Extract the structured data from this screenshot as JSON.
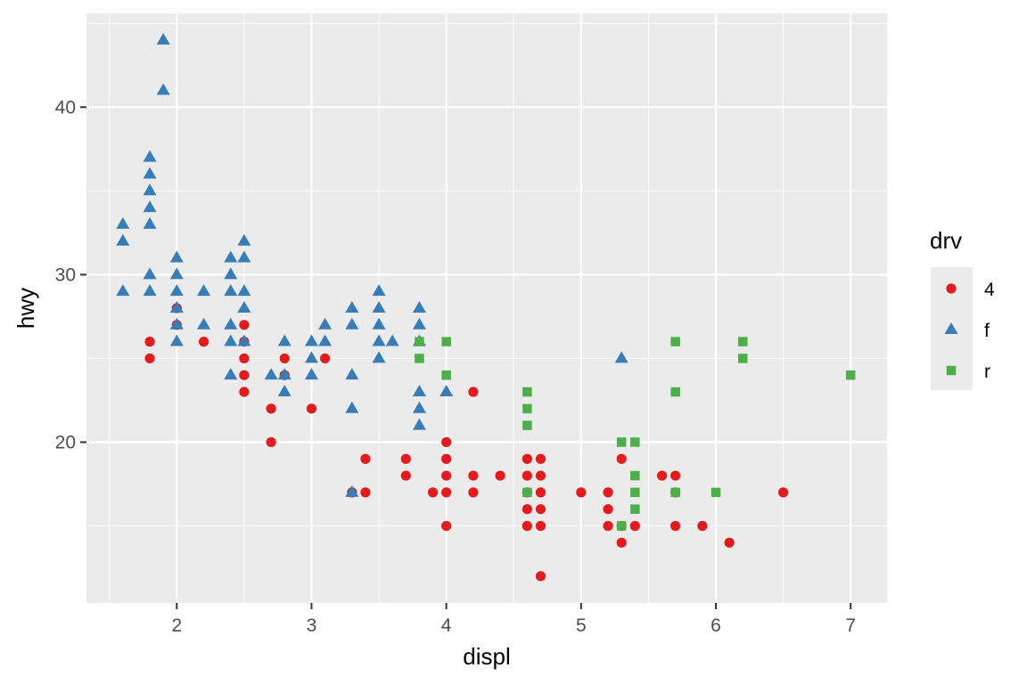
{
  "chart_data": {
    "type": "scatter",
    "xlabel": "displ",
    "ylabel": "hwy",
    "xlim": [
      1.33,
      7.27
    ],
    "ylim": [
      10.4,
      45.6
    ],
    "xticks": [
      2,
      3,
      4,
      5,
      6,
      7
    ],
    "yticks": [
      20,
      30,
      40
    ],
    "grid": true,
    "legend": {
      "title": "drv",
      "position": "right",
      "entries": [
        "4",
        "f",
        "r"
      ]
    },
    "series": [
      {
        "name": "4",
        "marker": "circle",
        "color": "#e41a1c",
        "points": [
          [
            1.8,
            26
          ],
          [
            1.8,
            25
          ],
          [
            2.0,
            28
          ],
          [
            2.0,
            27
          ],
          [
            2.2,
            26
          ],
          [
            2.5,
            27
          ],
          [
            2.5,
            26
          ],
          [
            2.5,
            25
          ],
          [
            2.5,
            24
          ],
          [
            2.5,
            23
          ],
          [
            2.7,
            22
          ],
          [
            2.7,
            20
          ],
          [
            2.8,
            25
          ],
          [
            2.8,
            24
          ],
          [
            3.0,
            22
          ],
          [
            3.1,
            25
          ],
          [
            3.3,
            17
          ],
          [
            3.4,
            19
          ],
          [
            3.4,
            17
          ],
          [
            3.7,
            19
          ],
          [
            3.7,
            18
          ],
          [
            3.9,
            17
          ],
          [
            4.0,
            20
          ],
          [
            4.0,
            19
          ],
          [
            4.0,
            18
          ],
          [
            4.0,
            17
          ],
          [
            4.0,
            15
          ],
          [
            4.2,
            23
          ],
          [
            4.2,
            18
          ],
          [
            4.2,
            17
          ],
          [
            4.4,
            18
          ],
          [
            4.6,
            19
          ],
          [
            4.6,
            18
          ],
          [
            4.6,
            17
          ],
          [
            4.6,
            16
          ],
          [
            4.6,
            15
          ],
          [
            4.7,
            19
          ],
          [
            4.7,
            18
          ],
          [
            4.7,
            17
          ],
          [
            4.7,
            16
          ],
          [
            4.7,
            15
          ],
          [
            4.7,
            12
          ],
          [
            5.0,
            17
          ],
          [
            5.2,
            17
          ],
          [
            5.2,
            16
          ],
          [
            5.2,
            15
          ],
          [
            5.3,
            19
          ],
          [
            5.3,
            15
          ],
          [
            5.3,
            14
          ],
          [
            5.4,
            15
          ],
          [
            5.6,
            18
          ],
          [
            5.7,
            18
          ],
          [
            5.7,
            17
          ],
          [
            5.7,
            15
          ],
          [
            5.9,
            15
          ],
          [
            6.1,
            14
          ],
          [
            6.5,
            17
          ]
        ]
      },
      {
        "name": "f",
        "marker": "triangle",
        "color": "#377eb8",
        "points": [
          [
            1.6,
            33
          ],
          [
            1.6,
            32
          ],
          [
            1.6,
            29
          ],
          [
            1.8,
            37
          ],
          [
            1.8,
            36
          ],
          [
            1.8,
            35
          ],
          [
            1.8,
            34
          ],
          [
            1.8,
            33
          ],
          [
            1.8,
            30
          ],
          [
            1.8,
            29
          ],
          [
            1.9,
            44
          ],
          [
            1.9,
            41
          ],
          [
            2.0,
            31
          ],
          [
            2.0,
            30
          ],
          [
            2.0,
            29
          ],
          [
            2.0,
            28
          ],
          [
            2.0,
            27
          ],
          [
            2.0,
            26
          ],
          [
            2.2,
            29
          ],
          [
            2.2,
            27
          ],
          [
            2.4,
            31
          ],
          [
            2.4,
            30
          ],
          [
            2.4,
            29
          ],
          [
            2.4,
            27
          ],
          [
            2.4,
            26
          ],
          [
            2.4,
            24
          ],
          [
            2.5,
            32
          ],
          [
            2.5,
            31
          ],
          [
            2.5,
            29
          ],
          [
            2.5,
            28
          ],
          [
            2.5,
            26
          ],
          [
            2.7,
            24
          ],
          [
            2.8,
            26
          ],
          [
            2.8,
            24
          ],
          [
            2.8,
            23
          ],
          [
            3.0,
            26
          ],
          [
            3.0,
            25
          ],
          [
            3.0,
            24
          ],
          [
            3.1,
            27
          ],
          [
            3.1,
            26
          ],
          [
            3.3,
            28
          ],
          [
            3.3,
            27
          ],
          [
            3.3,
            24
          ],
          [
            3.3,
            22
          ],
          [
            3.3,
            17
          ],
          [
            3.5,
            29
          ],
          [
            3.5,
            28
          ],
          [
            3.5,
            27
          ],
          [
            3.5,
            26
          ],
          [
            3.5,
            25
          ],
          [
            3.6,
            26
          ],
          [
            3.8,
            28
          ],
          [
            3.8,
            27
          ],
          [
            3.8,
            26
          ],
          [
            3.8,
            23
          ],
          [
            3.8,
            22
          ],
          [
            3.8,
            21
          ],
          [
            4.0,
            23
          ],
          [
            5.3,
            25
          ]
        ]
      },
      {
        "name": "r",
        "marker": "square",
        "color": "#4daf4a",
        "points": [
          [
            3.8,
            26
          ],
          [
            3.8,
            25
          ],
          [
            4.0,
            26
          ],
          [
            4.0,
            24
          ],
          [
            4.6,
            23
          ],
          [
            4.6,
            22
          ],
          [
            4.6,
            21
          ],
          [
            4.6,
            17
          ],
          [
            5.3,
            20
          ],
          [
            5.3,
            15
          ],
          [
            5.4,
            20
          ],
          [
            5.4,
            18
          ],
          [
            5.4,
            17
          ],
          [
            5.4,
            16
          ],
          [
            5.7,
            26
          ],
          [
            5.7,
            23
          ],
          [
            5.7,
            17
          ],
          [
            6.0,
            17
          ],
          [
            6.2,
            26
          ],
          [
            6.2,
            25
          ],
          [
            7.0,
            24
          ]
        ]
      }
    ]
  }
}
